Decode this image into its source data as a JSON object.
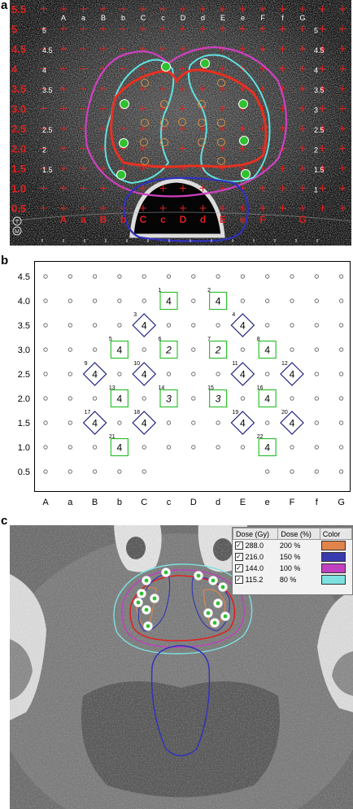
{
  "panels": [
    "a",
    "b",
    "c"
  ],
  "columns": [
    "A",
    "a",
    "B",
    "b",
    "C",
    "c",
    "D",
    "d",
    "E",
    "e",
    "F",
    "f",
    "G"
  ],
  "ultrasound_rows": [
    "5.5",
    "5",
    "4.5",
    "4",
    "3.5",
    "3.0",
    "2.5",
    "2.0",
    "1.5",
    "1.0",
    "0.5"
  ],
  "ultrasound_right_rows": [
    "5",
    "4.5",
    "4",
    "3.5",
    "3",
    "2.5",
    "2",
    "1.5",
    "1"
  ],
  "ultrasound_inner_rows": [
    "5",
    "4.5",
    "4",
    "3.5",
    "2.5",
    "2",
    "1.5"
  ],
  "ultrasound_bottom_columns": [
    "A",
    "a",
    "B",
    "b",
    "C",
    "c",
    "D",
    "d",
    "E",
    "e",
    "F",
    "G"
  ],
  "ultrasound_icons": [
    "T",
    "M"
  ],
  "plan": {
    "rows": [
      "4.5",
      "4.0",
      "3.5",
      "3.0",
      "2.5",
      "2.0",
      "1.5",
      "1.0",
      "0.5"
    ],
    "needles": [
      {
        "n": "1",
        "col": 5,
        "row": 4.0,
        "shape": "square",
        "val": "4",
        "style": "normal"
      },
      {
        "n": "2",
        "col": 7,
        "row": 4.0,
        "shape": "square",
        "val": "4",
        "style": "normal"
      },
      {
        "n": "3",
        "col": 4,
        "row": 3.5,
        "shape": "diamond",
        "val": "4",
        "style": "normal"
      },
      {
        "n": "4",
        "col": 8,
        "row": 3.5,
        "shape": "diamond",
        "val": "4",
        "style": "normal"
      },
      {
        "n": "5",
        "col": 3,
        "row": 3.0,
        "shape": "square",
        "val": "4",
        "style": "normal"
      },
      {
        "n": "6",
        "col": 5,
        "row": 3.0,
        "shape": "square",
        "val": "2",
        "style": "italic"
      },
      {
        "n": "7",
        "col": 7,
        "row": 3.0,
        "shape": "square",
        "val": "2",
        "style": "italic"
      },
      {
        "n": "8",
        "col": 9,
        "row": 3.0,
        "shape": "square",
        "val": "4",
        "style": "normal"
      },
      {
        "n": "9",
        "col": 2,
        "row": 2.5,
        "shape": "diamond",
        "val": "4",
        "style": "normal"
      },
      {
        "n": "10",
        "col": 4,
        "row": 2.5,
        "shape": "diamond",
        "val": "4",
        "style": "normal"
      },
      {
        "n": "11",
        "col": 8,
        "row": 2.5,
        "shape": "diamond",
        "val": "4",
        "style": "normal"
      },
      {
        "n": "12",
        "col": 10,
        "row": 2.5,
        "shape": "diamond",
        "val": "4",
        "style": "normal"
      },
      {
        "n": "13",
        "col": 3,
        "row": 2.0,
        "shape": "square",
        "val": "4",
        "style": "normal"
      },
      {
        "n": "14",
        "col": 5,
        "row": 2.0,
        "shape": "square",
        "val": "3",
        "style": "italic"
      },
      {
        "n": "15",
        "col": 7,
        "row": 2.0,
        "shape": "square",
        "val": "3",
        "style": "italic"
      },
      {
        "n": "16",
        "col": 9,
        "row": 2.0,
        "shape": "square",
        "val": "4",
        "style": "normal"
      },
      {
        "n": "17",
        "col": 2,
        "row": 1.5,
        "shape": "diamond",
        "val": "4",
        "style": "normal"
      },
      {
        "n": "18",
        "col": 4,
        "row": 1.5,
        "shape": "diamond",
        "val": "4",
        "style": "normal"
      },
      {
        "n": "19",
        "col": 8,
        "row": 1.5,
        "shape": "diamond",
        "val": "4",
        "style": "normal"
      },
      {
        "n": "20",
        "col": 10,
        "row": 1.5,
        "shape": "diamond",
        "val": "4",
        "style": "normal"
      },
      {
        "n": "21",
        "col": 3,
        "row": 1.0,
        "shape": "square",
        "val": "4",
        "style": "normal"
      },
      {
        "n": "22",
        "col": 9,
        "row": 1.0,
        "shape": "square",
        "val": "4",
        "style": "normal"
      }
    ]
  },
  "legend": {
    "headers": [
      "Dose (Gy)",
      "Dose (%)",
      "Color"
    ],
    "rows": [
      {
        "gy": "288.0",
        "pct": "200 %",
        "color": "#e0844a"
      },
      {
        "gy": "216.0",
        "pct": "150 %",
        "color": "#3a3ab0"
      },
      {
        "gy": "144.0",
        "pct": "100 %",
        "color": "#c040c0"
      },
      {
        "gy": "115.2",
        "pct": "80 %",
        "color": "#7ee0e0"
      }
    ]
  },
  "ct_side_label": "L",
  "colors": {
    "grid_red": "#e02020",
    "prostate_red": "#e83020",
    "cyan": "#60e0e0",
    "magenta": "#d040c0",
    "blue": "#3030c0",
    "green": "#30c030",
    "orange": "#e09040",
    "diamond_blue": "#202080"
  }
}
